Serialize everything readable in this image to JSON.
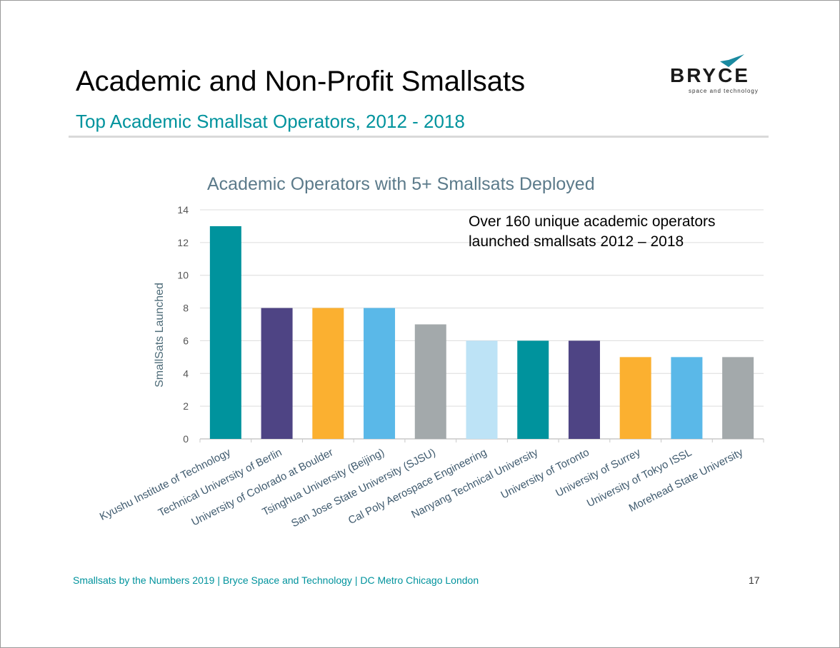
{
  "slide": {
    "title": "Academic and Non-Profit Smallsats",
    "subtitle": "Top Academic Smallsat Operators, 2012 - 2018",
    "logo": {
      "name": "BRYCE",
      "tagline": "space and technology",
      "accent": "#1a8aa0"
    },
    "annotation": [
      "Over 160 unique academic operators",
      "launched smallsats 2012 – 2018"
    ],
    "footer": "Smallsats by the Numbers 2019 | Bryce Space and Technology | DC Metro  Chicago  London",
    "page_number": "17"
  },
  "chart_data": {
    "type": "bar",
    "title": "Academic Operators with 5+ Smallsats Deployed",
    "ylabel": "SmallSats Launched",
    "xlabel": "",
    "ylim": [
      0,
      14
    ],
    "yticks": [
      0,
      2,
      4,
      6,
      8,
      10,
      12,
      14
    ],
    "grid": true,
    "categories": [
      "Kyushu Institute of Technology",
      "Technical University of Berlin",
      "University of Colorado at Boulder",
      "Tsinghua University (Beijing)",
      "San Jose State University (SJSU)",
      "Cal Poly Aerospace Engineering",
      "Nanyang Technical University",
      "University of Toronto",
      "University of Surrey",
      "University of Tokyo ISSL",
      "Morehead State University"
    ],
    "values": [
      13,
      8,
      8,
      8,
      7,
      6,
      6,
      6,
      5,
      5,
      5
    ],
    "colors": [
      "#00939d",
      "#4e4484",
      "#fbb030",
      "#5ab8e8",
      "#a3a9ab",
      "#bde3f6",
      "#00939d",
      "#4e4484",
      "#fbb030",
      "#5ab8e8",
      "#a3a9ab"
    ]
  }
}
